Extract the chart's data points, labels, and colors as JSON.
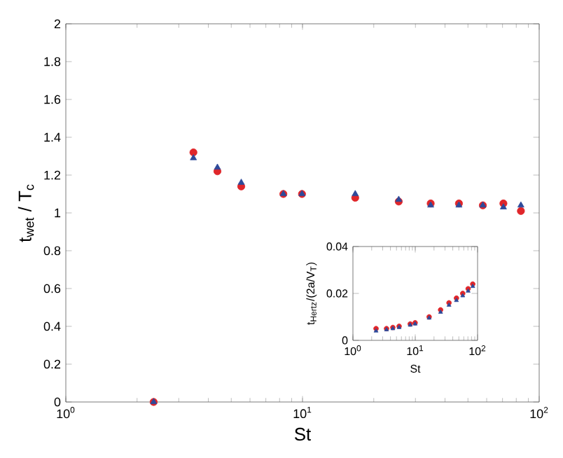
{
  "chart_data": [
    {
      "type": "scatter",
      "xlabel": "St",
      "ylabel": "t$_{wet}$ / T$_{c}$",
      "log": "x",
      "grid": false,
      "x": [
        2.35,
        3.46,
        4.37,
        5.51,
        8.3,
        9.95,
        16.7,
        25.5,
        34.8,
        45.8,
        57.8,
        70.6,
        83.7
      ],
      "xlim": [
        1,
        100
      ],
      "xticks": [
        {
          "value": 1,
          "label": "10$^{0}$"
        },
        {
          "value": 10,
          "label": "10$^{1}$"
        },
        {
          "value": 100,
          "label": "10$^{2}$"
        }
      ],
      "ylim": [
        0,
        2
      ],
      "yticks": [
        0,
        0.2,
        0.4,
        0.6,
        0.8,
        1,
        1.2,
        1.4,
        1.6,
        1.8,
        2
      ],
      "series": [
        {
          "color": "#e0262a",
          "marker": "circle",
          "values": [
            0,
            1.32,
            1.22,
            1.14,
            1.1,
            1.1,
            1.08,
            1.06,
            1.05,
            1.05,
            1.04,
            1.05,
            1.01
          ]
        },
        {
          "color": "#2e4a9a",
          "marker": "triangle",
          "values": [
            0,
            1.29,
            1.24,
            1.16,
            1.1,
            1.1,
            1.1,
            1.07,
            1.04,
            1.04,
            1.04,
            1.03,
            1.04
          ]
        }
      ]
    },
    {
      "type": "scatter",
      "xlabel": "St",
      "ylabel": "t$_{Hertz}$/(2a/V$_{T}$)",
      "log": "x",
      "grid": false,
      "x": [
        2.35,
        3.46,
        4.37,
        5.51,
        8.3,
        9.95,
        16.7,
        25.5,
        34.8,
        45.8,
        57.8,
        70.6,
        83.7
      ],
      "xlim": [
        1,
        100
      ],
      "xticks": [
        {
          "value": 1,
          "label": "10$^{0}$"
        },
        {
          "value": 10,
          "label": "10$^{1}$"
        },
        {
          "value": 100,
          "label": "10$^{2}$"
        }
      ],
      "ylim": [
        0,
        0.04
      ],
      "yticks": [
        0,
        0.02,
        0.04
      ],
      "series": [
        {
          "color": "#e0262a",
          "marker": "circle",
          "values": [
            0.005,
            0.005,
            0.0055,
            0.006,
            0.007,
            0.0075,
            0.01,
            0.013,
            0.016,
            0.018,
            0.02,
            0.022,
            0.024
          ]
        },
        {
          "color": "#2e4a9a",
          "marker": "triangle",
          "values": [
            0.004,
            0.0045,
            0.005,
            0.0055,
            0.0065,
            0.007,
            0.0095,
            0.012,
            0.015,
            0.017,
            0.019,
            0.021,
            0.023
          ]
        }
      ]
    }
  ]
}
